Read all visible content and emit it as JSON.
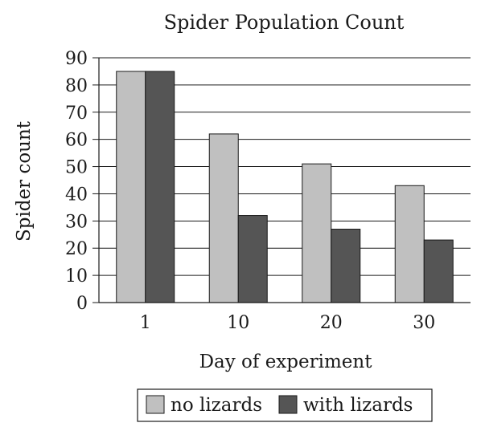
{
  "chart_data": {
    "type": "bar",
    "title": "Spider Population Count",
    "xlabel": "Day of experiment",
    "ylabel": "Spider count",
    "categories": [
      "1",
      "10",
      "20",
      "30"
    ],
    "series": [
      {
        "name": "no lizards",
        "values": [
          85,
          62,
          51,
          43
        ],
        "color": "#c0c0c0"
      },
      {
        "name": "with lizards",
        "values": [
          85,
          32,
          27,
          23
        ],
        "color": "#555555"
      }
    ],
    "ylim": [
      0,
      90
    ],
    "yticks": [
      0,
      10,
      20,
      30,
      40,
      50,
      60,
      70,
      80,
      90
    ],
    "grid": true,
    "legend_position": "bottom"
  }
}
